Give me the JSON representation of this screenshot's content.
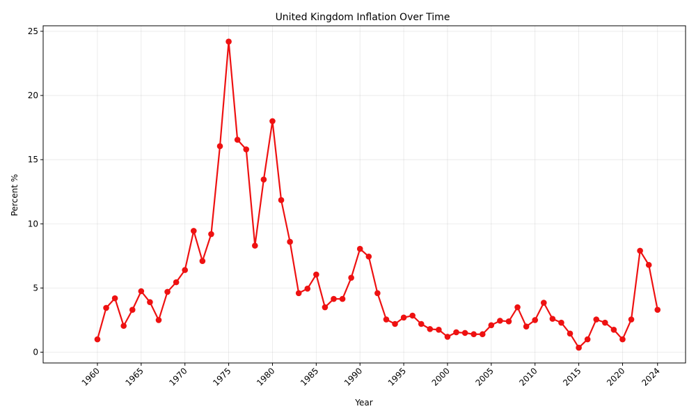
{
  "chart_data": {
    "type": "line",
    "title": "United Kingdom Inflation Over Time",
    "xlabel": "Year",
    "ylabel": "Percent %",
    "xlim": [
      1953.8,
      2027.2
    ],
    "ylim": [
      -0.84,
      25.43
    ],
    "x_ticks": [
      1960,
      1965,
      1970,
      1975,
      1980,
      1985,
      1990,
      1995,
      2000,
      2005,
      2010,
      2015,
      2020,
      2024
    ],
    "y_ticks": [
      0,
      5,
      10,
      15,
      20,
      25
    ],
    "grid": true,
    "line_color": "#ee1111",
    "series": [
      {
        "x": [
          1960,
          1961,
          1962,
          1963,
          1964,
          1965,
          1966,
          1967,
          1968,
          1969,
          1970,
          1971,
          1972,
          1973,
          1974,
          1975,
          1976,
          1977,
          1978,
          1979,
          1980,
          1981,
          1982,
          1983,
          1984,
          1985,
          1986,
          1987,
          1988,
          1989,
          1990,
          1991,
          1992,
          1993,
          1994,
          1995,
          1996,
          1997,
          1998,
          1999,
          2000,
          2001,
          2002,
          2003,
          2004,
          2005,
          2006,
          2007,
          2008,
          2009,
          2010,
          2011,
          2012,
          2013,
          2014,
          2015,
          2016,
          2017,
          2018,
          2019,
          2020,
          2021,
          2022,
          2023,
          2024
        ],
        "values": [
          1.0,
          3.45,
          4.2,
          2.05,
          3.3,
          4.75,
          3.9,
          2.5,
          4.7,
          5.45,
          6.4,
          9.45,
          7.1,
          9.2,
          16.05,
          24.2,
          16.55,
          15.8,
          8.3,
          13.45,
          18.0,
          11.85,
          8.6,
          4.6,
          4.95,
          6.05,
          3.5,
          4.15,
          4.15,
          5.8,
          8.05,
          7.45,
          4.6,
          2.55,
          2.2,
          2.7,
          2.85,
          2.2,
          1.8,
          1.75,
          1.2,
          1.55,
          1.5,
          1.4,
          1.4,
          2.1,
          2.45,
          2.4,
          3.5,
          2.0,
          2.5,
          3.85,
          2.6,
          2.3,
          1.45,
          0.35,
          1.0,
          2.55,
          2.3,
          1.75,
          1.0,
          2.55,
          7.9,
          6.8,
          3.3
        ]
      }
    ]
  }
}
